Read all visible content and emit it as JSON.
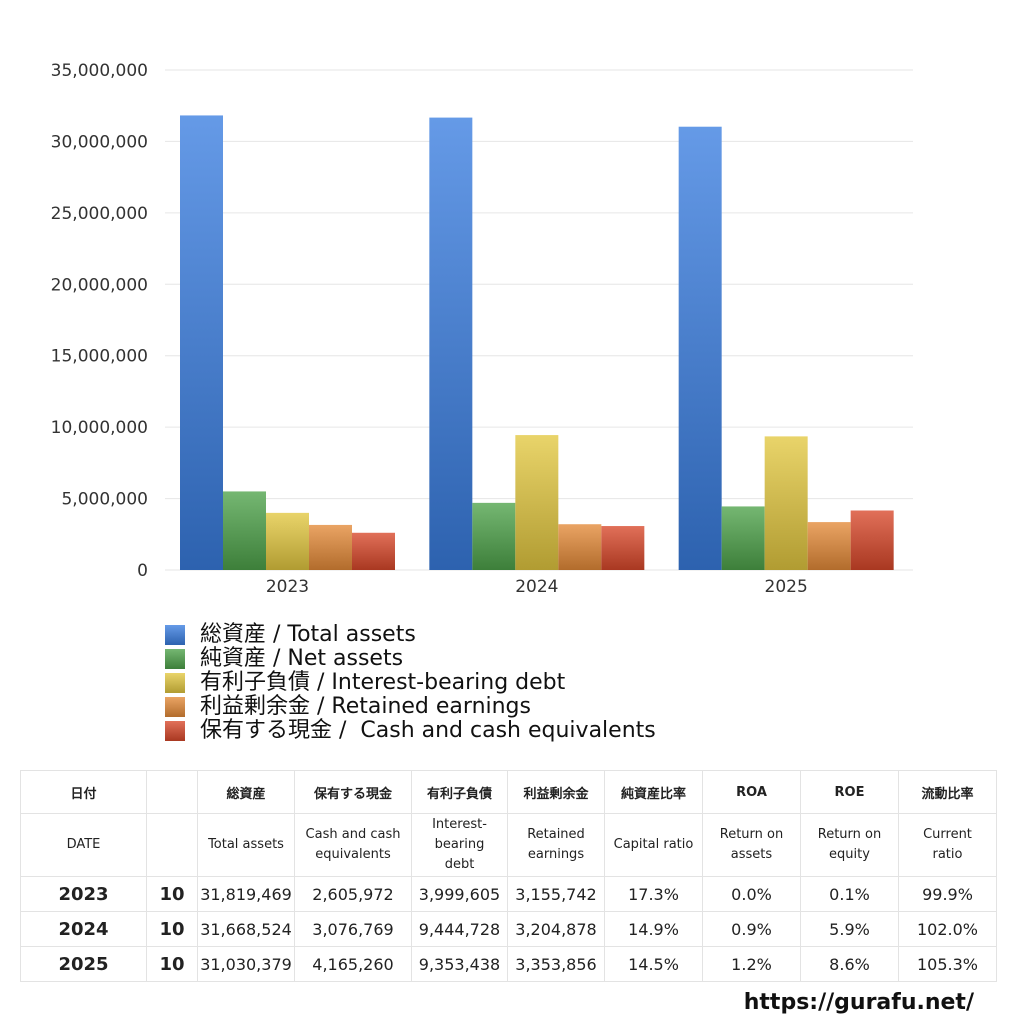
{
  "chart_data": {
    "type": "bar",
    "categories": [
      "2023",
      "2024",
      "2025"
    ],
    "ylim": [
      0,
      35000000
    ],
    "yticks": [
      "0",
      "5,000,000",
      "10,000,000",
      "15,000,000",
      "20,000,000",
      "25,000,000",
      "30,000,000",
      "35,000,000"
    ],
    "grid": true,
    "legend_position": "bottom",
    "series": [
      {
        "name": "総資産 / Total assets",
        "color": "#3a7de0",
        "values": [
          31819469,
          31668524,
          31030379
        ]
      },
      {
        "name": "純資産 / Net assets",
        "color": "#4ea34a",
        "values": [
          5500000,
          4700000,
          4450000
        ]
      },
      {
        "name": "有利子負債 / Interest-bearing debt",
        "color": "#e3c840",
        "values": [
          3999605,
          9444728,
          9353438
        ]
      },
      {
        "name": "利益剰余金 / Retained earnings",
        "color": "#e48a38",
        "values": [
          3155742,
          3204878,
          3353856
        ]
      },
      {
        "name": "保有する現金 /  Cash and cash equivalents",
        "color": "#d9482a",
        "values": [
          2605972,
          3076769,
          4165260
        ]
      }
    ]
  },
  "table": {
    "header_jp": [
      "日付",
      "",
      "総資産",
      "保有する現金",
      "有利子負債",
      "利益剰余金",
      "純資産比率",
      "ROA",
      "ROE",
      "流動比率"
    ],
    "header_en": [
      "DATE",
      "",
      "Total assets",
      "Cash and cash\nequivalents",
      "Interest-\nbearing\ndebt",
      "Retained\nearnings",
      "Capital ratio",
      "Return on\nassets",
      "Return on\nequity",
      "Current\nratio"
    ],
    "rows": [
      [
        "2023",
        "10",
        "31,819,469",
        "2,605,972",
        "3,999,605",
        "3,155,742",
        "17.3%",
        "0.0%",
        "0.1%",
        "99.9%"
      ],
      [
        "2024",
        "10",
        "31,668,524",
        "3,076,769",
        "9,444,728",
        "3,204,878",
        "14.9%",
        "0.9%",
        "5.9%",
        "102.0%"
      ],
      [
        "2025",
        "10",
        "31,030,379",
        "4,165,260",
        "9,353,438",
        "3,353,856",
        "14.5%",
        "1.2%",
        "8.6%",
        "105.3%"
      ]
    ]
  },
  "footer": {
    "url": "https://gurafu.net/"
  }
}
